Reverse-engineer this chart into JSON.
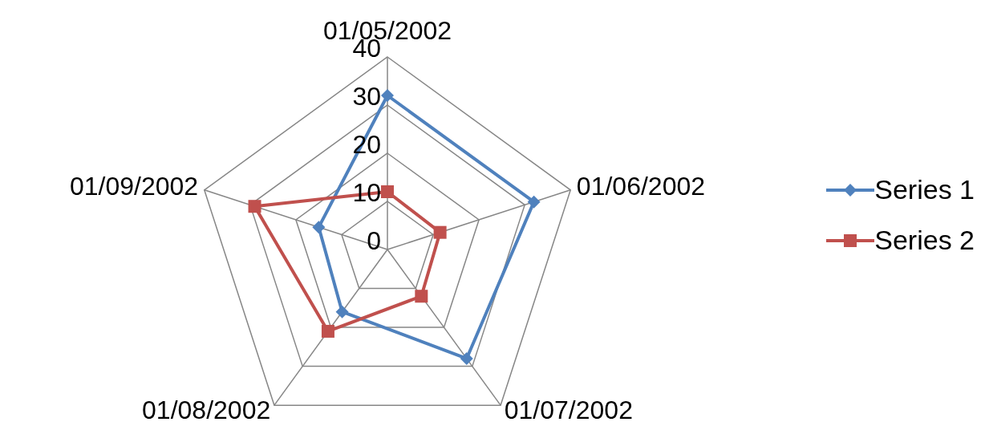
{
  "chart_data": {
    "type": "radar",
    "categories": [
      "01/05/2002",
      "01/06/2002",
      "01/07/2002",
      "01/08/2002",
      "01/09/2002"
    ],
    "series": [
      {
        "name": "Series 1",
        "color": "#4f81bd",
        "marker": "diamond",
        "values": [
          32,
          32,
          28,
          16,
          15
        ]
      },
      {
        "name": "Series 2",
        "color": "#c0504d",
        "marker": "square",
        "values": [
          12,
          11.5,
          12,
          21,
          29
        ]
      }
    ],
    "ylim": [
      0,
      40
    ],
    "yticks": [
      0,
      10,
      20,
      30,
      40
    ],
    "grid": true,
    "legend": "right",
    "line_style": "solid"
  }
}
